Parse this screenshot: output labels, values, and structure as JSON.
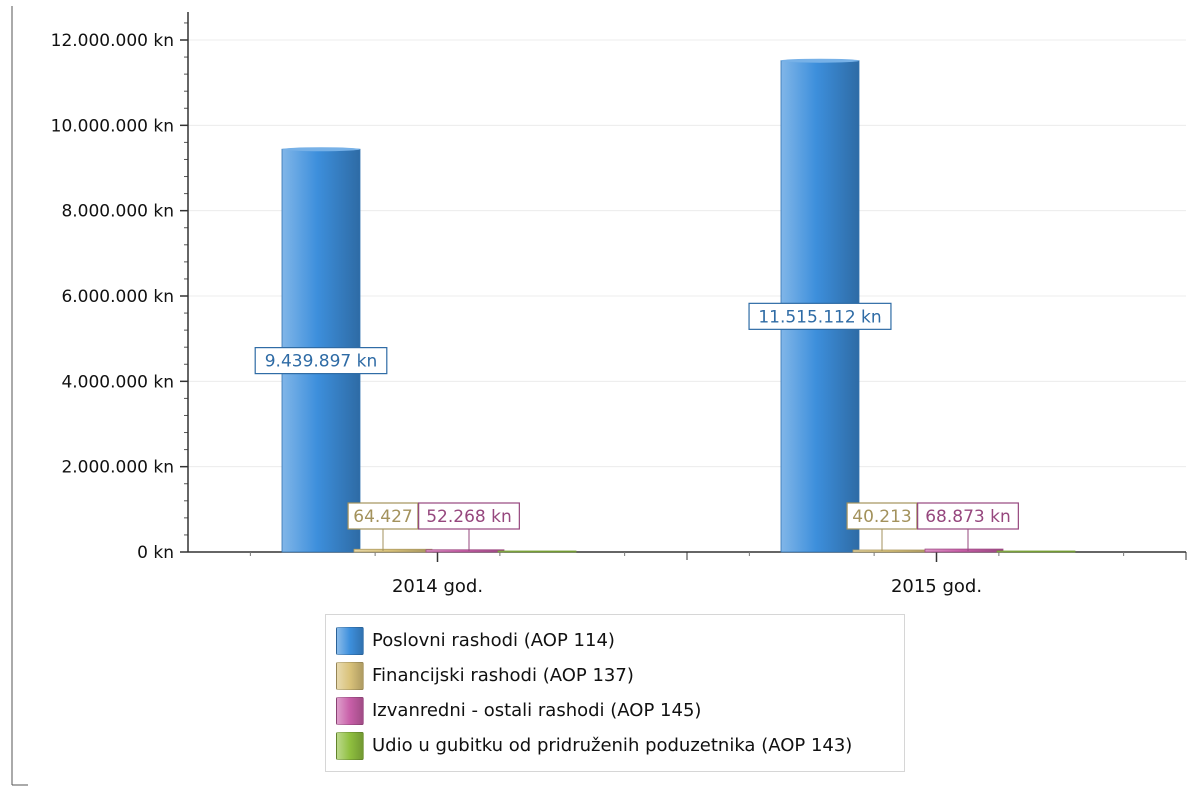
{
  "chart_data": {
    "type": "bar",
    "categories": [
      "2014 god.",
      "2015 god."
    ],
    "series": [
      {
        "name": "Poslovni rashodi (AOP 114)",
        "values": [
          9439897,
          11515112
        ],
        "color": "#3d8fdc",
        "labels": [
          "9.439.897 kn",
          "11.515.112 kn"
        ]
      },
      {
        "name": "Financijski rashodi (AOP 137)",
        "values": [
          64427,
          40213
        ],
        "color": "#d9c27a",
        "labels": [
          "64.427",
          "40.213"
        ]
      },
      {
        "name": "Izvanredni - ostali rashodi (AOP 145)",
        "values": [
          52268,
          68873
        ],
        "color": "#c85fa8",
        "labels": [
          "52.268 kn",
          "68.873 kn"
        ]
      },
      {
        "name": "Udio u gubitku od pridruženih poduzetnika (AOP 143)",
        "values": [
          0,
          0
        ],
        "color": "#8fbf3f",
        "labels": [
          "",
          ""
        ]
      }
    ],
    "y_ticks": [
      {
        "value": 0,
        "label": "0 kn"
      },
      {
        "value": 2000000,
        "label": "2.000.000 kn"
      },
      {
        "value": 4000000,
        "label": "4.000.000 kn"
      },
      {
        "value": 6000000,
        "label": "6.000.000 kn"
      },
      {
        "value": 8000000,
        "label": "8.000.000 kn"
      },
      {
        "value": 10000000,
        "label": "10.000.000 kn"
      },
      {
        "value": 12000000,
        "label": "12.000.000 kn"
      }
    ],
    "ylim": [
      0,
      12000000
    ],
    "grid": true,
    "legend_position": "bottom",
    "title": "",
    "xlabel": "",
    "ylabel": ""
  }
}
